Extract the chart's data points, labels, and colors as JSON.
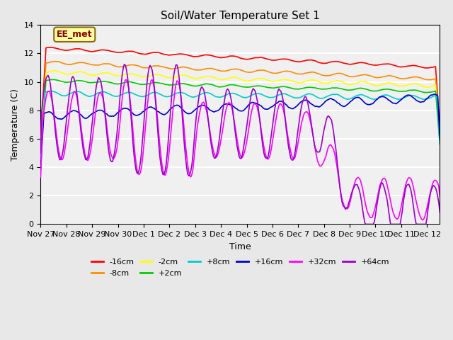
{
  "title": "Soil/Water Temperature Set 1",
  "xlabel": "Time",
  "ylabel": "Temperature (C)",
  "ylim": [
    0,
    14
  ],
  "yticks": [
    0,
    2,
    4,
    6,
    8,
    10,
    12,
    14
  ],
  "annotation_text": "EE_met",
  "annotation_color": "#8B0000",
  "annotation_bg": "#FFFFA0",
  "annotation_border": "#8B6914",
  "num_days": 15.5,
  "xtick_labels": [
    "Nov 27",
    "Nov 28",
    "Nov 29",
    "Nov 30",
    "Dec 1",
    "Dec 2",
    "Dec 3",
    "Dec 4",
    "Dec 5",
    "Dec 6",
    "Dec 7",
    "Dec 8",
    "Dec 9",
    "Dec 10",
    "Dec 11",
    "Dec 12"
  ],
  "colors": {
    "-16cm": "#FF0000",
    "-8cm": "#FF8C00",
    "-2cm": "#FFFF00",
    "+2cm": "#00CC00",
    "+8cm": "#00CCCC",
    "+16cm": "#0000CC",
    "+32cm": "#FF00FF",
    "+64cm": "#9900CC"
  },
  "background_color": "#E8E8E8",
  "plot_bg": "#F0F0F0",
  "grid_color": "#FFFFFF",
  "figsize": [
    6.4,
    4.8
  ],
  "dpi": 100
}
